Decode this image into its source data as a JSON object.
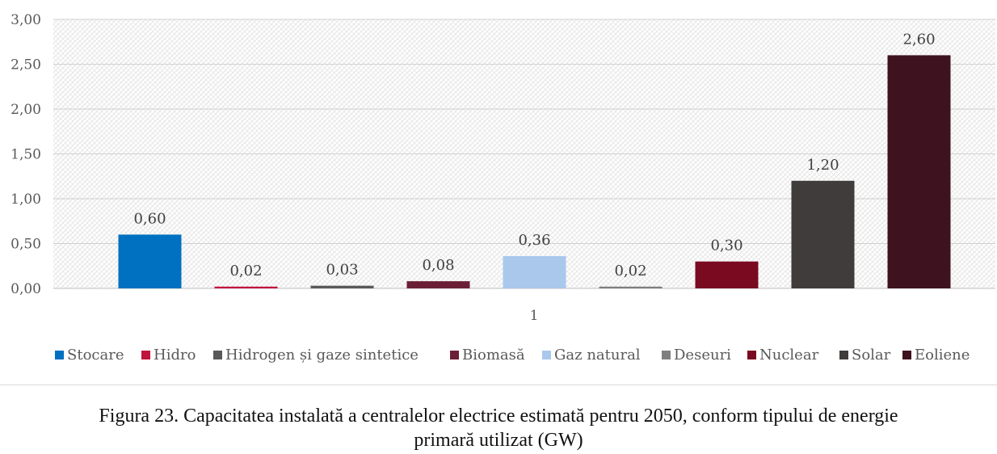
{
  "chart_data": {
    "type": "bar",
    "categories": [
      "1"
    ],
    "series": [
      {
        "name": "Stocare",
        "values": [
          0.6
        ],
        "label": "0,60",
        "color": "#0070c0"
      },
      {
        "name": "Hidro",
        "values": [
          0.02
        ],
        "label": "0,02",
        "color": "#c0143c"
      },
      {
        "name": "Hidrogen și gaze sintetice",
        "values": [
          0.03
        ],
        "label": "0,03",
        "color": "#595959"
      },
      {
        "name": "Biomasă",
        "values": [
          0.08
        ],
        "label": "0,08",
        "color": "#6b1f36"
      },
      {
        "name": "Gaz natural",
        "values": [
          0.36
        ],
        "label": "0,36",
        "color": "#a9c8ec"
      },
      {
        "name": "Deseuri",
        "values": [
          0.02
        ],
        "label": "0,02",
        "color": "#7f7f7f"
      },
      {
        "name": "Nuclear",
        "values": [
          0.3
        ],
        "label": "0,30",
        "color": "#7a0a20"
      },
      {
        "name": "Solar",
        "values": [
          1.2
        ],
        "label": "1,20",
        "color": "#403c3c"
      },
      {
        "name": "Eoliene",
        "values": [
          2.6
        ],
        "label": "2,60",
        "color": "#3f121f"
      }
    ],
    "ylim": [
      0,
      3
    ],
    "yticks": [
      "0,00",
      "0,50",
      "1,00",
      "1,50",
      "2,00",
      "2,50",
      "3,00"
    ],
    "grid": true,
    "legend_position": "bottom"
  },
  "caption": {
    "line1": "Figura 23. Capacitatea instalată a centralelor electrice estimată pentru 2050, conform tipului de energie",
    "line2": "primară utilizat (GW)"
  }
}
